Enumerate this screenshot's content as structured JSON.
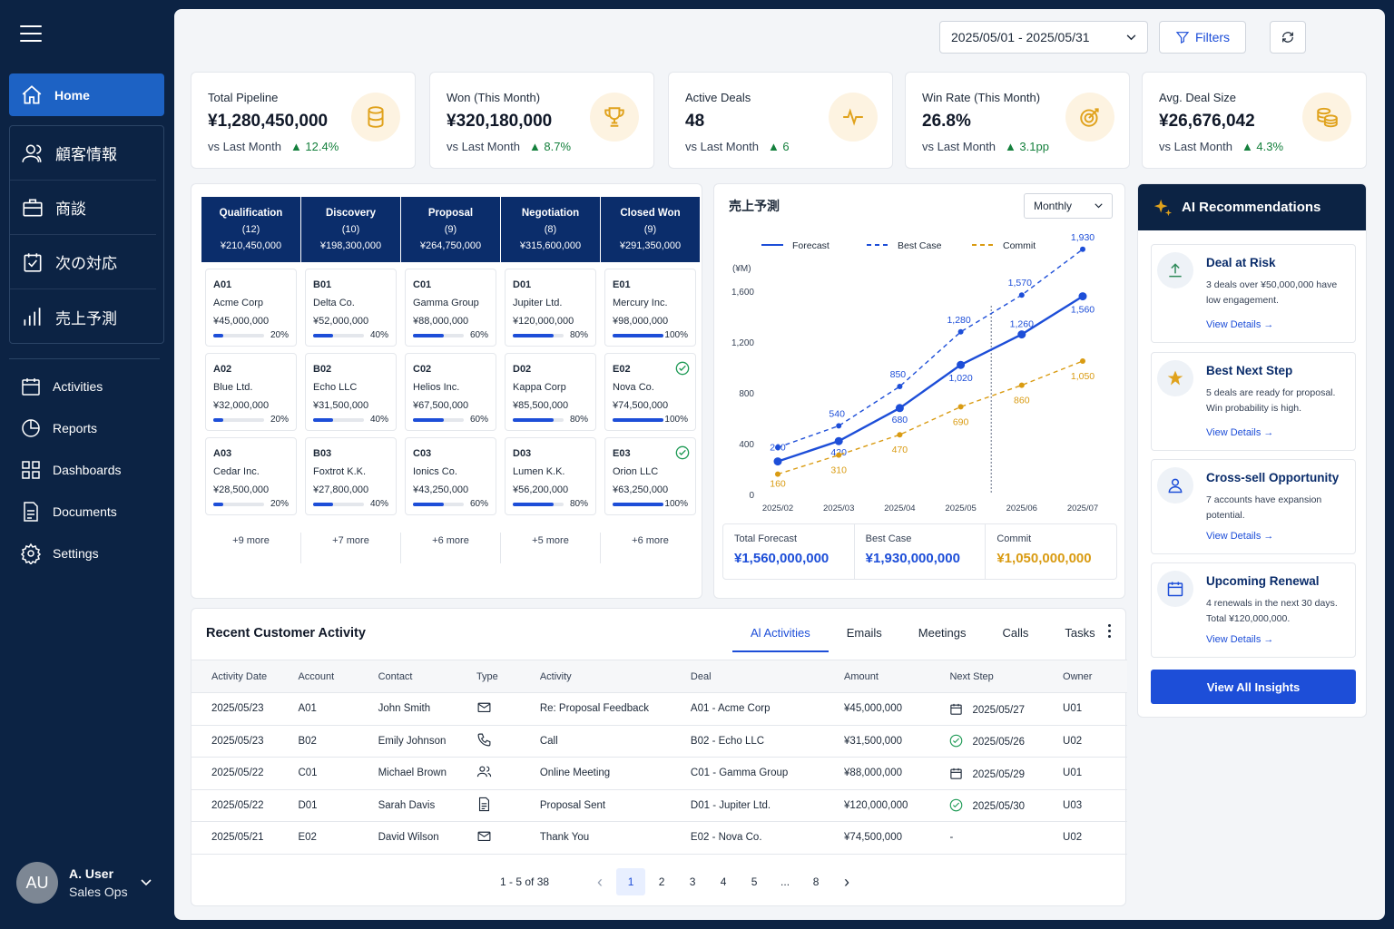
{
  "sidebar": {
    "home": "Home",
    "group": [
      "顧客情報",
      "商談",
      "次の対応",
      "売上予測"
    ],
    "list": [
      "Activities",
      "Reports",
      "Dashboards",
      "Documents",
      "Settings"
    ]
  },
  "user": {
    "initials": "AU",
    "name": "A. User",
    "role": "Sales Ops"
  },
  "topbar": {
    "date_range": "2025/05/01 - 2025/05/31",
    "filters_label": "Filters"
  },
  "kpis": [
    {
      "title": "Total Pipeline",
      "value": "¥1,280,450,000",
      "compare": "vs Last Month",
      "change": "▲ 12.4%",
      "icon": "database-icon"
    },
    {
      "title": "Won (This Month)",
      "value": "¥320,180,000",
      "compare": "vs Last Month",
      "change": "▲ 8.7%",
      "icon": "trophy-icon"
    },
    {
      "title": "Active Deals",
      "value": "48",
      "compare": "vs Last Month",
      "change": "▲ 6",
      "icon": "pulse-icon"
    },
    {
      "title": "Win Rate (This Month)",
      "value": "26.8%",
      "compare": "vs Last Month",
      "change": "▲ 3.1pp",
      "icon": "target-icon"
    },
    {
      "title": "Avg. Deal Size",
      "value": "¥26,676,042",
      "compare": "vs Last Month",
      "change": "▲ 4.3%",
      "icon": "coins-icon"
    }
  ],
  "pipeline": [
    {
      "stage": "Qualification",
      "count": "(12)",
      "total": "¥210,450,000",
      "more": "+9 more",
      "deals": [
        {
          "id": "A01",
          "name": "Acme Corp",
          "amount": "¥45,000,000",
          "pct": "20%",
          "p": 0.2
        },
        {
          "id": "A02",
          "name": "Blue Ltd.",
          "amount": "¥32,000,000",
          "pct": "20%",
          "p": 0.2
        },
        {
          "id": "A03",
          "name": "Cedar Inc.",
          "amount": "¥28,500,000",
          "pct": "20%",
          "p": 0.2
        }
      ]
    },
    {
      "stage": "Discovery",
      "count": "(10)",
      "total": "¥198,300,000",
      "more": "+7 more",
      "deals": [
        {
          "id": "B01",
          "name": "Delta Co.",
          "amount": "¥52,000,000",
          "pct": "40%",
          "p": 0.4
        },
        {
          "id": "B02",
          "name": "Echo LLC",
          "amount": "¥31,500,000",
          "pct": "40%",
          "p": 0.4
        },
        {
          "id": "B03",
          "name": "Foxtrot K.K.",
          "amount": "¥27,800,000",
          "pct": "40%",
          "p": 0.4
        }
      ]
    },
    {
      "stage": "Proposal",
      "count": "(9)",
      "total": "¥264,750,000",
      "more": "+6 more",
      "deals": [
        {
          "id": "C01",
          "name": "Gamma Group",
          "amount": "¥88,000,000",
          "pct": "60%",
          "p": 0.6
        },
        {
          "id": "C02",
          "name": "Helios Inc.",
          "amount": "¥67,500,000",
          "pct": "60%",
          "p": 0.6
        },
        {
          "id": "C03",
          "name": "Ionics Co.",
          "amount": "¥43,250,000",
          "pct": "60%",
          "p": 0.6
        }
      ]
    },
    {
      "stage": "Negotiation",
      "count": "(8)",
      "total": "¥315,600,000",
      "more": "+5 more",
      "deals": [
        {
          "id": "D01",
          "name": "Jupiter Ltd.",
          "amount": "¥120,000,000",
          "pct": "80%",
          "p": 0.8
        },
        {
          "id": "D02",
          "name": "Kappa Corp",
          "amount": "¥85,500,000",
          "pct": "80%",
          "p": 0.8
        },
        {
          "id": "D03",
          "name": "Lumen K.K.",
          "amount": "¥56,200,000",
          "pct": "80%",
          "p": 0.8
        }
      ]
    },
    {
      "stage": "Closed Won",
      "count": "(9)",
      "total": "¥291,350,000",
      "more": "+6 more",
      "deals": [
        {
          "id": "E01",
          "name": "Mercury Inc.",
          "amount": "¥98,000,000",
          "pct": "100%",
          "p": 1.0,
          "check": false
        },
        {
          "id": "E02",
          "name": "Nova Co.",
          "amount": "¥74,500,000",
          "pct": "100%",
          "p": 1.0,
          "check": true
        },
        {
          "id": "E03",
          "name": "Orion LLC",
          "amount": "¥63,250,000",
          "pct": "100%",
          "p": 1.0,
          "check": true
        }
      ]
    }
  ],
  "forecast": {
    "title": "売上予測",
    "period": "Monthly",
    "unit": "(¥M)",
    "summary": [
      {
        "label": "Total Forecast",
        "value": "¥1,560,000,000",
        "color": "#1d4ed8"
      },
      {
        "label": "Best Case",
        "value": "¥1,930,000,000",
        "color": "#1d4ed8"
      },
      {
        "label": "Commit",
        "value": "¥1,050,000,000",
        "color": "#d99b12"
      }
    ]
  },
  "chart_data": {
    "type": "line",
    "x": [
      "2025/02",
      "2025/03",
      "2025/04",
      "2025/05",
      "2025/06",
      "2025/07"
    ],
    "ylim": [
      0,
      1600
    ],
    "yticks": [
      0,
      400,
      800,
      1200,
      1600
    ],
    "legend_position": "top",
    "series": [
      {
        "name": "Forecast",
        "values": [
          260,
          420,
          680,
          1020,
          1260,
          1560
        ],
        "color": "#1d4ed8",
        "style": "solid"
      },
      {
        "name": "Best Case",
        "values": [
          370,
          540,
          850,
          1280,
          1570,
          1930
        ],
        "color": "#1d4ed8",
        "style": "dashed",
        "labels": [
          "",
          "540",
          "850",
          "1,280",
          "1,570",
          "1,930"
        ]
      },
      {
        "name": "Commit",
        "values": [
          160,
          310,
          470,
          690,
          860,
          1050
        ],
        "color": "#d99b12",
        "style": "dashed"
      }
    ],
    "point_labels": {
      "Forecast": [
        "260",
        "420",
        "680",
        "1,020",
        "1,260",
        "1,560"
      ],
      "Commit": [
        "160",
        "310",
        "470",
        "690",
        "860",
        "1,050"
      ]
    }
  },
  "ai": {
    "title": "AI Recommendations",
    "cards": [
      {
        "title": "Deal at Risk",
        "desc": "3 deals over ¥50,000,000 have low engagement.",
        "link": "View Details",
        "icon": "upload-arrow-icon"
      },
      {
        "title": "Best Next Step",
        "desc": "5 deals are ready for proposal. Win probability is high.",
        "link": "View Details",
        "icon": "star-icon"
      },
      {
        "title": "Cross-sell Opportunity",
        "desc": "7 accounts have expansion potential.",
        "link": "View Details",
        "icon": "person-icon"
      },
      {
        "title": "Upcoming Renewal",
        "desc": "4 renewals in the next 30 days. Total ¥120,000,000.",
        "link": "View Details",
        "icon": "calendar-icon"
      }
    ],
    "button": "View All Insights"
  },
  "activity": {
    "title": "Recent Customer Activity",
    "tabs": [
      "Al Activities",
      "Emails",
      "Meetings",
      "Calls",
      "Tasks"
    ],
    "columns": [
      "Activity Date",
      "Account",
      "Contact",
      "Type",
      "Activity",
      "Deal",
      "Amount",
      "Next Step",
      "Owner"
    ],
    "rows": [
      {
        "date": "2025/05/23",
        "account": "A01",
        "contact": "John Smith",
        "type": "mail",
        "activity": "Re: Proposal Feedback",
        "deal": "A01 - Acme Corp",
        "amount": "¥45,000,000",
        "next_icon": "calendar",
        "next": "2025/05/27",
        "owner": "U01"
      },
      {
        "date": "2025/05/23",
        "account": "B02",
        "contact": "Emily Johnson",
        "type": "phone",
        "activity": "Call",
        "deal": "B02 - Echo LLC",
        "amount": "¥31,500,000",
        "next_icon": "check",
        "next": "2025/05/26",
        "owner": "U02"
      },
      {
        "date": "2025/05/22",
        "account": "C01",
        "contact": "Michael Brown",
        "type": "people",
        "activity": "Online Meeting",
        "deal": "C01 - Gamma Group",
        "amount": "¥88,000,000",
        "next_icon": "calendar",
        "next": "2025/05/29",
        "owner": "U01"
      },
      {
        "date": "2025/05/22",
        "account": "D01",
        "contact": "Sarah Davis",
        "type": "doc",
        "activity": "Proposal Sent",
        "deal": "D01 - Jupiter Ltd.",
        "amount": "¥120,000,000",
        "next_icon": "check",
        "next": "2025/05/30",
        "owner": "U03"
      },
      {
        "date": "2025/05/21",
        "account": "E02",
        "contact": "David Wilson",
        "type": "mail",
        "activity": "Thank You",
        "deal": "E02 - Nova Co.",
        "amount": "¥74,500,000",
        "next_icon": "none",
        "next": "-",
        "owner": "U02"
      }
    ],
    "pager": {
      "count": "1 - 5 of 38",
      "pages": [
        "1",
        "2",
        "3",
        "4",
        "5",
        "...",
        "8"
      ]
    }
  }
}
